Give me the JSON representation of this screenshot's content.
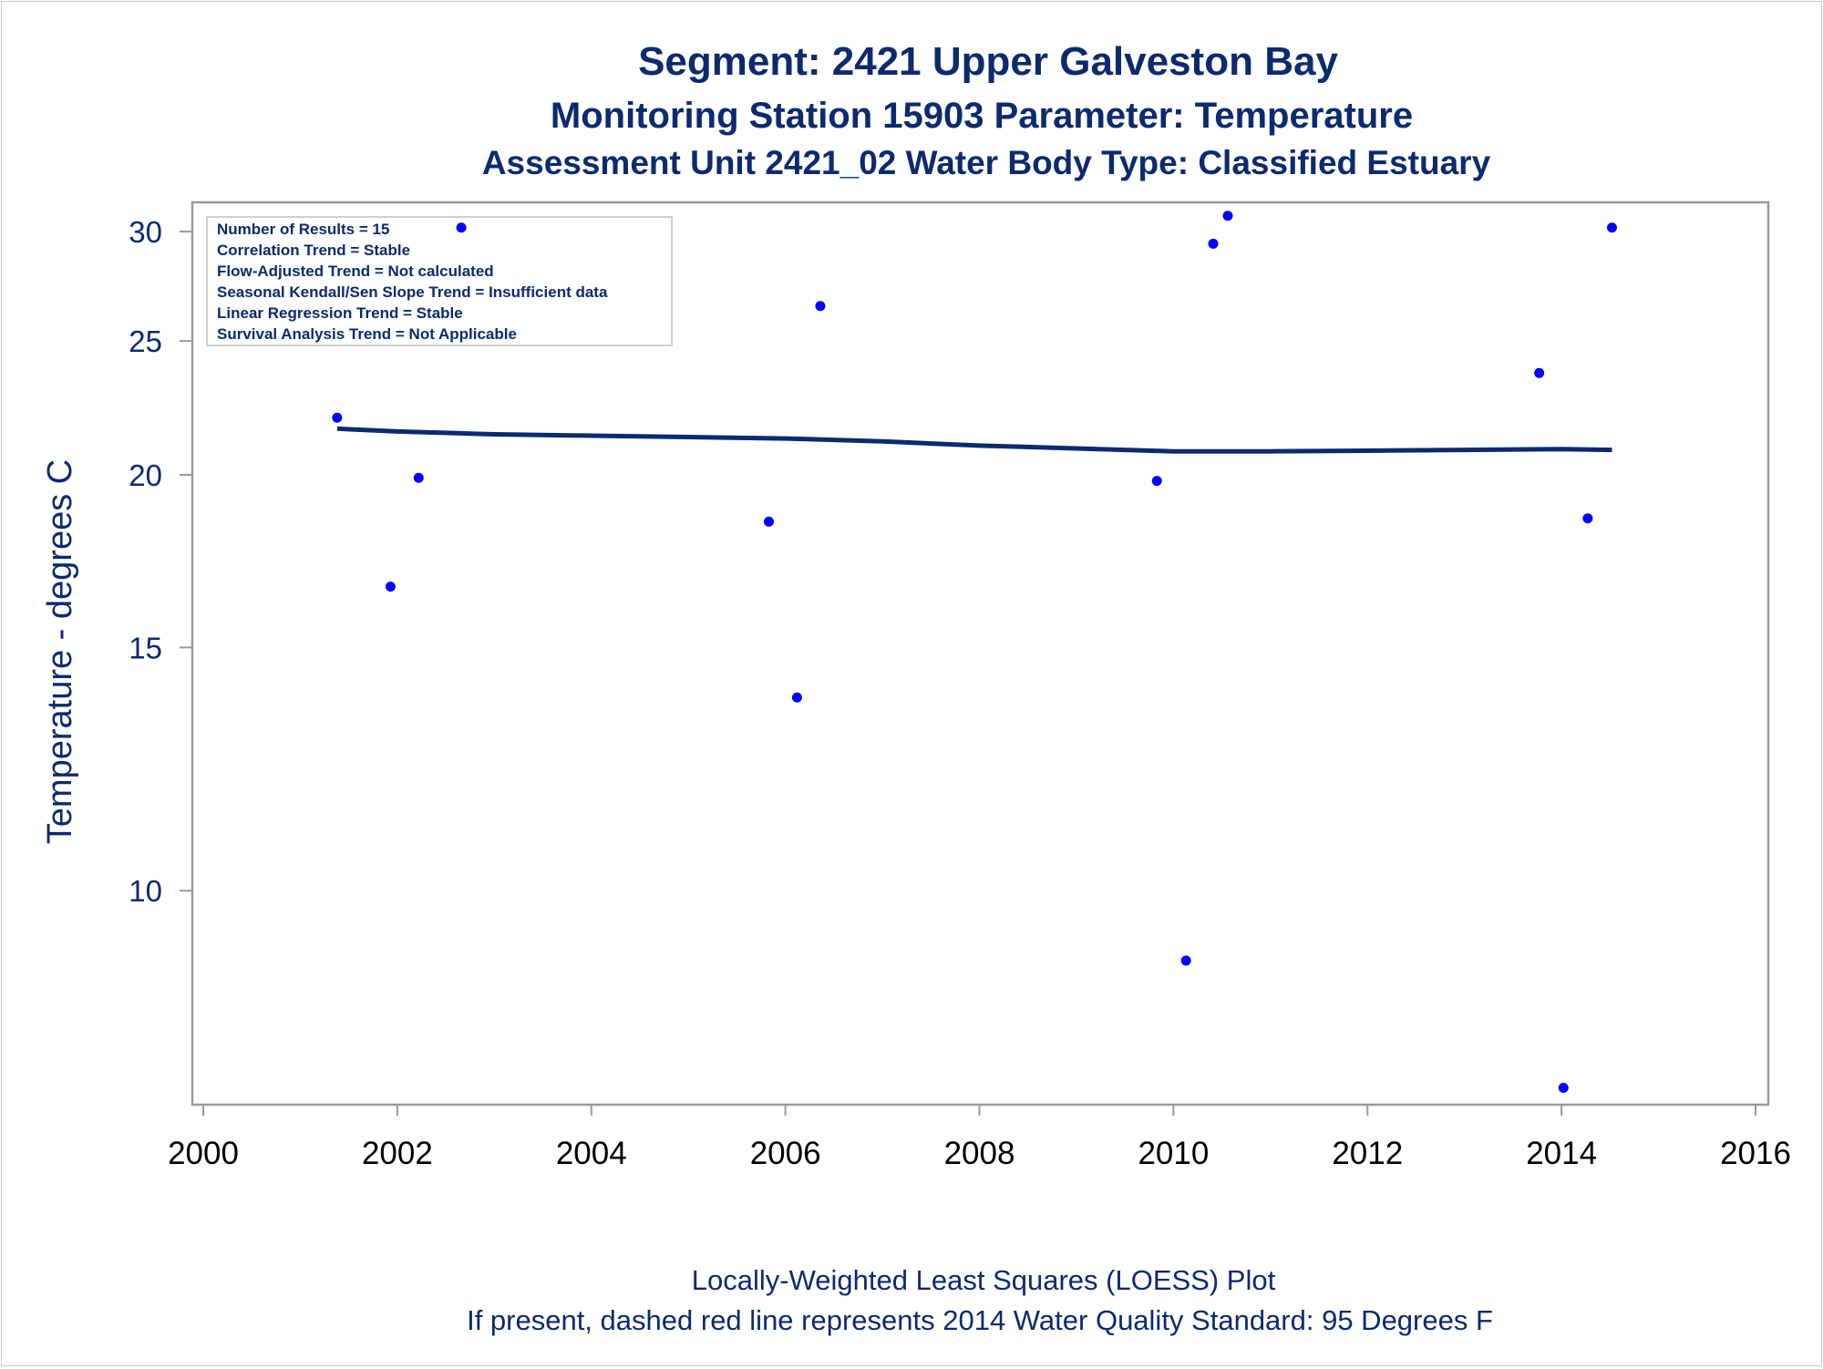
{
  "chart_data": {
    "type": "scatter",
    "title": "Segment: 2421  Upper Galveston Bay",
    "subtitle": "Monitoring Station 15903 Parameter: Temperature",
    "subtitle2": "Assessment Unit 2421_02   Water Body Type: Classified Estuary",
    "xlabel": "",
    "ylabel": "Temperature - degrees C",
    "footnote1": "Locally-Weighted Least Squares (LOESS) Plot",
    "footnote2": "If present, dashed red line represents 2014 Water Quality Standard: 95   Degrees F",
    "y_scale": "log",
    "xlim": [
      2000,
      2016
    ],
    "ylim": [
      7.0,
      31.5
    ],
    "x_ticks": [
      2000,
      2002,
      2004,
      2006,
      2008,
      2010,
      2012,
      2014,
      2016
    ],
    "x_tick_labels": [
      "2000",
      "2002",
      "2004",
      "2006",
      "2008",
      "2010",
      "2012",
      "2014",
      "2016"
    ],
    "y_ticks": [
      10,
      15,
      20,
      25,
      30
    ],
    "y_tick_labels": [
      "10",
      "15",
      "20",
      "25",
      "30"
    ],
    "grid": false,
    "legend_box": {
      "position": "top-left",
      "lines": [
        "Number of Results = 15",
        "Correlation Trend = Stable",
        "Flow-Adjusted Trend = Not calculated",
        "Seasonal Kendall/Sen Slope Trend = Insufficient data",
        "Linear Regression Trend = Stable",
        "Survival Analysis Trend = Not Applicable"
      ]
    },
    "series": [
      {
        "kind": "points",
        "color": "#0000ff",
        "x": [
          2001.38,
          2001.93,
          2002.22,
          2002.66,
          2005.83,
          2006.12,
          2006.36,
          2009.83,
          2010.13,
          2010.41,
          2010.56,
          2013.77,
          2014.02,
          2014.27,
          2014.52
        ],
        "y": [
          22.0,
          16.6,
          19.9,
          30.2,
          18.5,
          13.8,
          26.5,
          19.8,
          8.9,
          29.4,
          30.8,
          23.7,
          7.2,
          18.6,
          30.2
        ]
      },
      {
        "kind": "line",
        "color": "#0b2a6f",
        "x": [
          2001.38,
          2002,
          2003,
          2004,
          2005,
          2006,
          2007,
          2008,
          2009,
          2010,
          2011,
          2012,
          2013,
          2014,
          2014.52
        ],
        "y": [
          21.6,
          21.5,
          21.4,
          21.35,
          21.3,
          21.25,
          21.15,
          21.0,
          20.9,
          20.8,
          20.8,
          20.82,
          20.85,
          20.88,
          20.85
        ]
      }
    ]
  }
}
